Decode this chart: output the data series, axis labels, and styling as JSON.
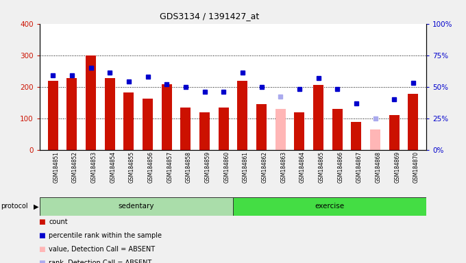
{
  "title": "GDS3134 / 1391427_at",
  "samples": [
    "GSM184851",
    "GSM184852",
    "GSM184853",
    "GSM184854",
    "GSM184855",
    "GSM184856",
    "GSM184857",
    "GSM184858",
    "GSM184859",
    "GSM184860",
    "GSM184861",
    "GSM184862",
    "GSM184863",
    "GSM184864",
    "GSM184865",
    "GSM184866",
    "GSM184867",
    "GSM184868",
    "GSM184869",
    "GSM184870"
  ],
  "count_values": [
    220,
    228,
    300,
    228,
    182,
    162,
    207,
    135,
    120,
    135,
    218,
    145,
    130,
    120,
    205,
    130,
    88,
    65,
    110,
    178
  ],
  "count_absent": [
    false,
    false,
    false,
    false,
    false,
    false,
    false,
    false,
    false,
    false,
    false,
    false,
    true,
    false,
    false,
    false,
    false,
    true,
    false,
    false
  ],
  "rank_values": [
    59,
    59,
    65,
    61,
    54,
    58,
    52,
    50,
    46,
    46,
    61,
    50,
    42,
    48,
    57,
    48,
    37,
    25,
    40,
    53
  ],
  "rank_absent": [
    false,
    false,
    false,
    false,
    false,
    false,
    false,
    false,
    false,
    false,
    false,
    false,
    true,
    false,
    false,
    false,
    false,
    true,
    false,
    false
  ],
  "sed_color": "#aaddaa",
  "ex_color": "#44dd44",
  "bar_color_normal": "#cc1100",
  "bar_color_absent": "#ffb6b6",
  "rank_color_normal": "#0000cc",
  "rank_color_absent": "#aaaaee",
  "ylim_left": [
    0,
    400
  ],
  "ylim_right": [
    0,
    100
  ],
  "yticks_left": [
    0,
    100,
    200,
    300,
    400
  ],
  "ytick_labels_right": [
    "0%",
    "25%",
    "50%",
    "75%",
    "100%"
  ],
  "yticks_right": [
    0,
    25,
    50,
    75,
    100
  ],
  "plot_bg": "#ffffff",
  "fig_bg": "#f0f0f0",
  "legend_items": [
    {
      "label": "count",
      "color": "#cc1100"
    },
    {
      "label": "percentile rank within the sample",
      "color": "#0000cc"
    },
    {
      "label": "value, Detection Call = ABSENT",
      "color": "#ffb6b6"
    },
    {
      "label": "rank, Detection Call = ABSENT",
      "color": "#aaaaee"
    }
  ]
}
